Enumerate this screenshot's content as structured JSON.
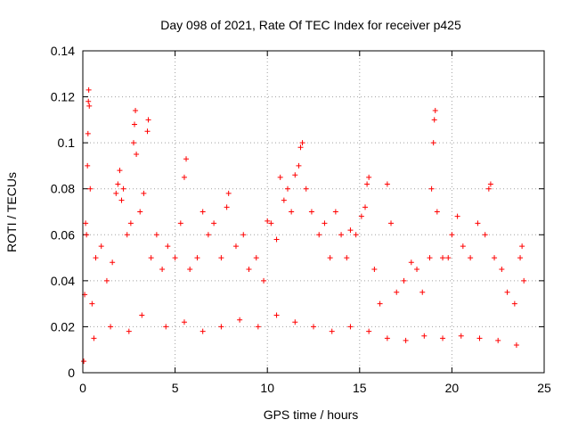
{
  "chart_data": {
    "type": "scatter",
    "title": "Day 098 of 2021, Rate Of TEC Index for receiver p425",
    "xlabel": "GPS time / hours",
    "ylabel": "ROTI / TECUs",
    "xlim": [
      0,
      25
    ],
    "ylim": [
      0,
      0.14
    ],
    "x_ticks": [
      0,
      5,
      10,
      15,
      20,
      25
    ],
    "x_tick_labels": [
      "0",
      "5",
      "10",
      "15",
      "20",
      "25"
    ],
    "y_ticks": [
      0,
      0.02,
      0.04,
      0.06,
      0.08,
      0.1,
      0.12,
      0.14
    ],
    "y_tick_labels": [
      "0",
      "0.02",
      "0.04",
      "0.06",
      "0.08",
      "0.1",
      "0.12",
      "0.14"
    ],
    "grid": true,
    "marker": "+",
    "color": "#ff0000",
    "series": [
      {
        "points": [
          [
            0.05,
            0.005
          ],
          [
            0.1,
            0.034
          ],
          [
            0.15,
            0.065
          ],
          [
            0.2,
            0.06
          ],
          [
            0.25,
            0.09
          ],
          [
            0.28,
            0.104
          ],
          [
            0.3,
            0.118
          ],
          [
            0.32,
            0.123
          ],
          [
            0.35,
            0.116
          ],
          [
            0.4,
            0.08
          ],
          [
            0.5,
            0.03
          ],
          [
            0.7,
            0.05
          ],
          [
            1.0,
            0.055
          ],
          [
            1.3,
            0.04
          ],
          [
            1.6,
            0.048
          ],
          [
            1.8,
            0.078
          ],
          [
            1.9,
            0.082
          ],
          [
            2.0,
            0.088
          ],
          [
            2.1,
            0.075
          ],
          [
            2.2,
            0.08
          ],
          [
            2.4,
            0.06
          ],
          [
            2.6,
            0.065
          ],
          [
            2.75,
            0.1
          ],
          [
            2.8,
            0.108
          ],
          [
            2.85,
            0.114
          ],
          [
            2.9,
            0.095
          ],
          [
            3.1,
            0.07
          ],
          [
            3.3,
            0.078
          ],
          [
            3.5,
            0.105
          ],
          [
            3.55,
            0.11
          ],
          [
            3.7,
            0.05
          ],
          [
            4.0,
            0.06
          ],
          [
            4.3,
            0.045
          ],
          [
            4.6,
            0.055
          ],
          [
            5.0,
            0.05
          ],
          [
            5.3,
            0.065
          ],
          [
            5.5,
            0.085
          ],
          [
            5.6,
            0.093
          ],
          [
            5.8,
            0.045
          ],
          [
            6.2,
            0.05
          ],
          [
            6.5,
            0.07
          ],
          [
            6.8,
            0.06
          ],
          [
            7.1,
            0.065
          ],
          [
            7.5,
            0.05
          ],
          [
            7.8,
            0.072
          ],
          [
            7.9,
            0.078
          ],
          [
            8.3,
            0.055
          ],
          [
            8.7,
            0.06
          ],
          [
            9.0,
            0.045
          ],
          [
            9.4,
            0.05
          ],
          [
            9.8,
            0.04
          ],
          [
            10.0,
            0.066
          ],
          [
            10.2,
            0.065
          ],
          [
            10.5,
            0.058
          ],
          [
            10.7,
            0.085
          ],
          [
            10.9,
            0.075
          ],
          [
            11.1,
            0.08
          ],
          [
            11.3,
            0.07
          ],
          [
            11.5,
            0.086
          ],
          [
            11.7,
            0.09
          ],
          [
            11.8,
            0.098
          ],
          [
            11.9,
            0.1
          ],
          [
            12.1,
            0.08
          ],
          [
            12.4,
            0.07
          ],
          [
            12.8,
            0.06
          ],
          [
            13.1,
            0.065
          ],
          [
            13.4,
            0.05
          ],
          [
            13.7,
            0.07
          ],
          [
            14.0,
            0.06
          ],
          [
            14.3,
            0.05
          ],
          [
            14.5,
            0.062
          ],
          [
            14.8,
            0.06
          ],
          [
            15.1,
            0.068
          ],
          [
            15.3,
            0.072
          ],
          [
            15.4,
            0.082
          ],
          [
            15.5,
            0.085
          ],
          [
            15.8,
            0.045
          ],
          [
            16.1,
            0.03
          ],
          [
            16.5,
            0.082
          ],
          [
            16.7,
            0.065
          ],
          [
            17.0,
            0.035
          ],
          [
            17.4,
            0.04
          ],
          [
            17.8,
            0.048
          ],
          [
            18.1,
            0.045
          ],
          [
            18.4,
            0.035
          ],
          [
            18.8,
            0.05
          ],
          [
            18.9,
            0.08
          ],
          [
            19.0,
            0.1
          ],
          [
            19.05,
            0.11
          ],
          [
            19.1,
            0.114
          ],
          [
            19.2,
            0.07
          ],
          [
            19.5,
            0.05
          ],
          [
            19.8,
            0.05
          ],
          [
            20.0,
            0.06
          ],
          [
            20.3,
            0.068
          ],
          [
            20.6,
            0.055
          ],
          [
            21.0,
            0.05
          ],
          [
            21.4,
            0.065
          ],
          [
            21.8,
            0.06
          ],
          [
            22.0,
            0.08
          ],
          [
            22.1,
            0.082
          ],
          [
            22.3,
            0.05
          ],
          [
            22.7,
            0.045
          ],
          [
            23.0,
            0.035
          ],
          [
            23.4,
            0.03
          ],
          [
            23.7,
            0.05
          ],
          [
            23.8,
            0.055
          ],
          [
            23.9,
            0.04
          ],
          [
            0.6,
            0.015
          ],
          [
            1.5,
            0.02
          ],
          [
            2.5,
            0.018
          ],
          [
            3.2,
            0.025
          ],
          [
            4.5,
            0.02
          ],
          [
            5.5,
            0.022
          ],
          [
            6.5,
            0.018
          ],
          [
            7.5,
            0.02
          ],
          [
            8.5,
            0.023
          ],
          [
            9.5,
            0.02
          ],
          [
            10.5,
            0.025
          ],
          [
            11.5,
            0.022
          ],
          [
            12.5,
            0.02
          ],
          [
            13.5,
            0.018
          ],
          [
            14.5,
            0.02
          ],
          [
            15.5,
            0.018
          ],
          [
            16.5,
            0.015
          ],
          [
            17.5,
            0.014
          ],
          [
            18.5,
            0.016
          ],
          [
            19.5,
            0.015
          ],
          [
            20.5,
            0.016
          ],
          [
            21.5,
            0.015
          ],
          [
            22.5,
            0.014
          ],
          [
            23.5,
            0.012
          ]
        ]
      }
    ]
  }
}
